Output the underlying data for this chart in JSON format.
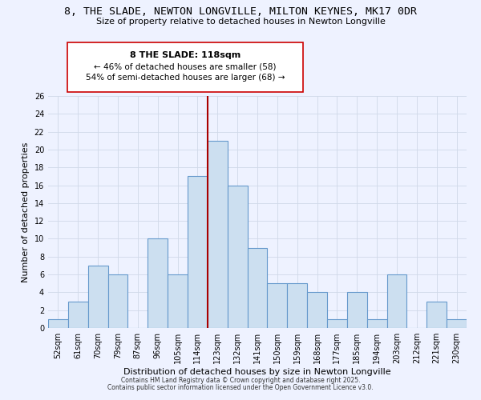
{
  "title": "8, THE SLADE, NEWTON LONGVILLE, MILTON KEYNES, MK17 0DR",
  "subtitle": "Size of property relative to detached houses in Newton Longville",
  "xlabel": "Distribution of detached houses by size in Newton Longville",
  "ylabel": "Number of detached properties",
  "bar_labels": [
    "52sqm",
    "61sqm",
    "70sqm",
    "79sqm",
    "87sqm",
    "96sqm",
    "105sqm",
    "114sqm",
    "123sqm",
    "132sqm",
    "141sqm",
    "150sqm",
    "159sqm",
    "168sqm",
    "177sqm",
    "185sqm",
    "194sqm",
    "203sqm",
    "212sqm",
    "221sqm",
    "230sqm"
  ],
  "bar_values": [
    1,
    3,
    7,
    6,
    0,
    10,
    6,
    17,
    21,
    16,
    9,
    5,
    5,
    4,
    1,
    4,
    1,
    6,
    0,
    3,
    1
  ],
  "bar_color": "#ccdff0",
  "bar_edge_color": "#6699cc",
  "vline_x": 7.5,
  "vline_color": "#aa0000",
  "annotation_title": "8 THE SLADE: 118sqm",
  "annotation_line1": "← 46% of detached houses are smaller (58)",
  "annotation_line2": "54% of semi-detached houses are larger (68) →",
  "ylim": [
    0,
    26
  ],
  "yticks": [
    0,
    2,
    4,
    6,
    8,
    10,
    12,
    14,
    16,
    18,
    20,
    22,
    24,
    26
  ],
  "footer1": "Contains HM Land Registry data © Crown copyright and database right 2025.",
  "footer2": "Contains public sector information licensed under the Open Government Licence v3.0.",
  "bg_color": "#eef2ff",
  "grid_color": "#d0d8e8",
  "title_fontsize": 9.5,
  "subtitle_fontsize": 8,
  "axis_label_fontsize": 8,
  "tick_fontsize": 7,
  "annotation_title_fontsize": 8,
  "annotation_text_fontsize": 7.5,
  "footer_fontsize": 5.5
}
